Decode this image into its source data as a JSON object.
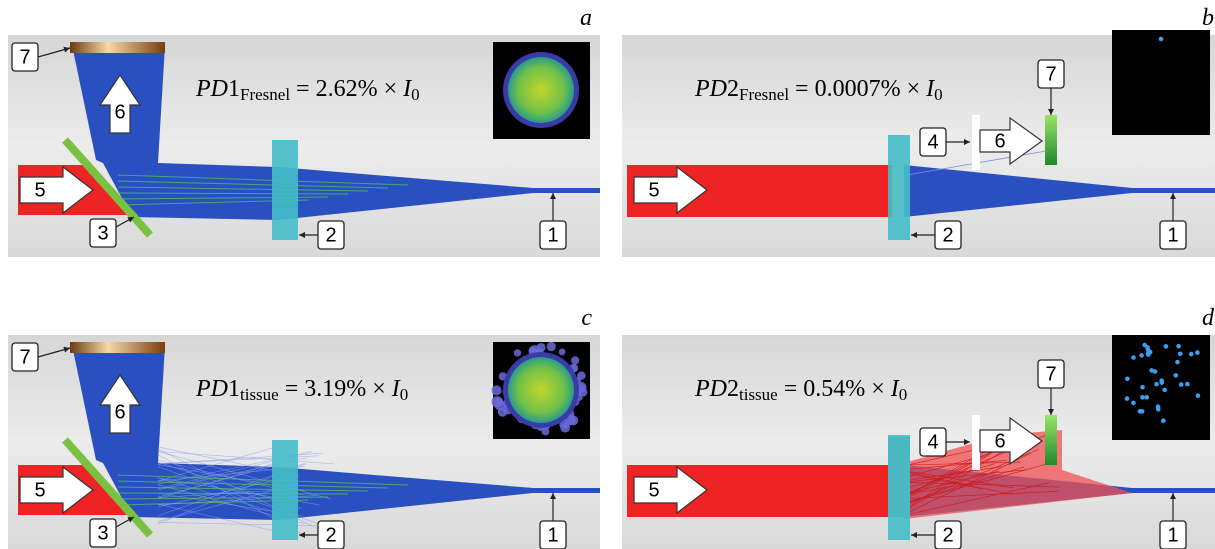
{
  "panels": [
    {
      "letter": "a",
      "formula": {
        "symbol": "PD",
        "index": "1",
        "subscript": "Fresnel",
        "expression": "= 2.62% ×",
        "variable": "I",
        "variable_subscript": "0"
      },
      "labels": [
        "7",
        "6",
        "5",
        "3",
        "2",
        "1"
      ]
    },
    {
      "letter": "b",
      "formula": {
        "symbol": "PD",
        "index": "2",
        "subscript": "Fresnel",
        "expression": "= 0.0007% ×",
        "variable": "I",
        "variable_subscript": "0"
      },
      "labels": [
        "7",
        "4",
        "6",
        "5",
        "2",
        "1"
      ]
    },
    {
      "letter": "c",
      "formula": {
        "symbol": "PD",
        "index": "1",
        "subscript": "tissue",
        "expression": "= 3.19% ×",
        "variable": "I",
        "variable_subscript": "0"
      },
      "labels": [
        "7",
        "6",
        "5",
        "3",
        "2",
        "1"
      ]
    },
    {
      "letter": "d",
      "formula": {
        "symbol": "PD",
        "index": "2",
        "subscript": "tissue",
        "expression": "= 0.54% ×",
        "variable": "I",
        "variable_subscript": "0"
      },
      "labels": [
        "7",
        "4",
        "6",
        "5",
        "2",
        "1"
      ]
    }
  ]
}
